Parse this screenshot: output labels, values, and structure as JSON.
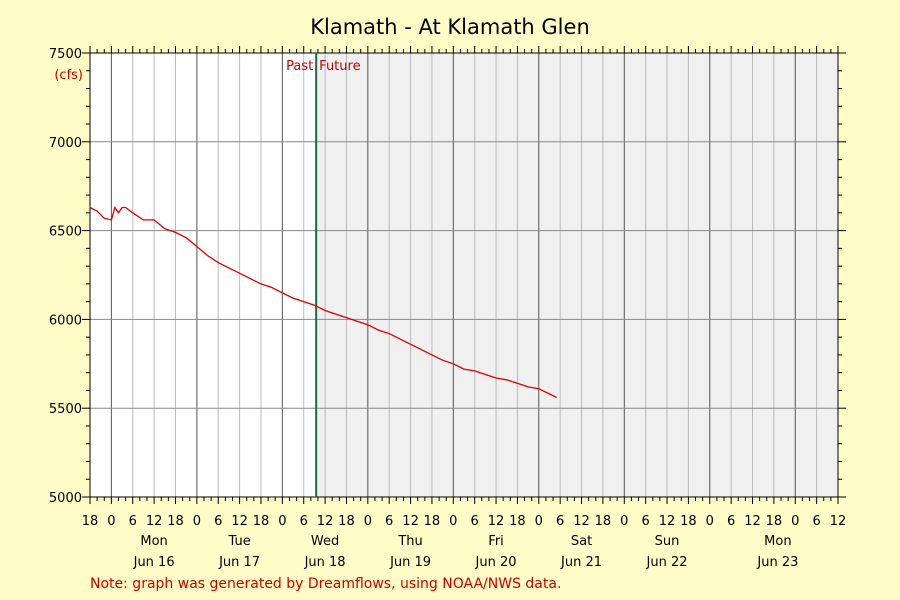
{
  "chart_data": {
    "type": "line",
    "title": "Klamath - At Klamath Glen",
    "ylabel": "(cfs)",
    "ylim": [
      5000,
      7500
    ],
    "yticks": [
      5000,
      5500,
      6000,
      6500,
      7000,
      7500
    ],
    "xlim": [
      "2025-06-15T18:00",
      "2025-06-24T12:00"
    ],
    "hour_labels": [
      "18",
      "0",
      "6",
      "12",
      "18",
      "0",
      "6",
      "12",
      "18",
      "0",
      "6",
      "12",
      "18",
      "0",
      "6",
      "12",
      "18",
      "0",
      "6",
      "12",
      "18",
      "0",
      "6",
      "12",
      "18",
      "0",
      "6",
      "12",
      "18",
      "0",
      "6",
      "12",
      "18",
      "0",
      "6",
      "12"
    ],
    "days": [
      {
        "dow": "Mon",
        "date": "Jun 16"
      },
      {
        "dow": "Tue",
        "date": "Jun 17"
      },
      {
        "dow": "Wed",
        "date": "Jun 18"
      },
      {
        "dow": "Thu",
        "date": "Jun 19"
      },
      {
        "dow": "Fri",
        "date": "Jun 20"
      },
      {
        "dow": "Sat",
        "date": "Jun 21"
      },
      {
        "dow": "Sun",
        "date": "Jun 22"
      },
      {
        "dow": "Mon",
        "date": "Jun 23"
      }
    ],
    "now": "2025-06-18T09:30",
    "past_label": "Past",
    "future_label": "Future",
    "grid": true,
    "series": [
      {
        "color": "#dd0000",
        "x": [
          "2025-06-15T18:00",
          "2025-06-15T20:00",
          "2025-06-15T22:00",
          "2025-06-16T00:00",
          "2025-06-16T01:00",
          "2025-06-16T02:00",
          "2025-06-16T03:00",
          "2025-06-16T04:00",
          "2025-06-16T06:00",
          "2025-06-16T09:00",
          "2025-06-16T12:00",
          "2025-06-16T15:00",
          "2025-06-16T18:00",
          "2025-06-16T21:00",
          "2025-06-17T00:00",
          "2025-06-17T03:00",
          "2025-06-17T06:00",
          "2025-06-17T09:00",
          "2025-06-17T12:00",
          "2025-06-17T15:00",
          "2025-06-17T18:00",
          "2025-06-17T21:00",
          "2025-06-18T00:00",
          "2025-06-18T03:00",
          "2025-06-18T06:00",
          "2025-06-18T09:00",
          "2025-06-18T12:00",
          "2025-06-18T15:00",
          "2025-06-18T18:00",
          "2025-06-18T21:00",
          "2025-06-19T00:00",
          "2025-06-19T03:00",
          "2025-06-19T06:00",
          "2025-06-19T09:00",
          "2025-06-19T12:00",
          "2025-06-19T15:00",
          "2025-06-19T18:00",
          "2025-06-19T21:00",
          "2025-06-20T00:00",
          "2025-06-20T03:00",
          "2025-06-20T06:00",
          "2025-06-20T09:00",
          "2025-06-20T12:00",
          "2025-06-20T15:00",
          "2025-06-20T18:00",
          "2025-06-20T21:00",
          "2025-06-21T00:00",
          "2025-06-21T03:00",
          "2025-06-21T05:00"
        ],
        "y": [
          6630,
          6610,
          6570,
          6560,
          6630,
          6600,
          6630,
          6630,
          6600,
          6560,
          6560,
          6510,
          6490,
          6460,
          6410,
          6360,
          6320,
          6290,
          6260,
          6230,
          6200,
          6180,
          6150,
          6120,
          6100,
          6080,
          6050,
          6030,
          6010,
          5990,
          5970,
          5940,
          5920,
          5890,
          5860,
          5830,
          5800,
          5770,
          5750,
          5720,
          5710,
          5690,
          5670,
          5660,
          5640,
          5620,
          5610,
          5580,
          5560
        ]
      }
    ]
  },
  "note": "Note: graph was generated by Dreamflows, using NOAA/NWS data."
}
